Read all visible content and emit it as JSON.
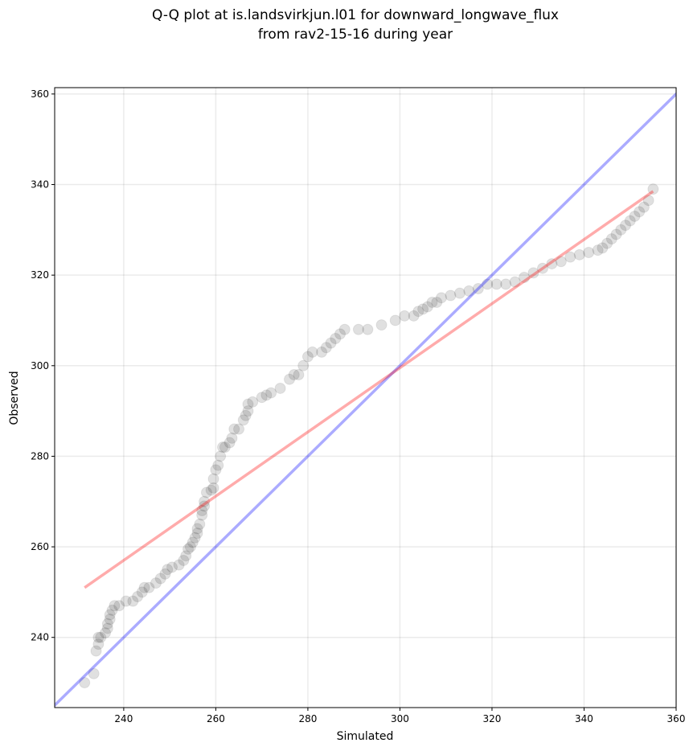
{
  "chart_data": {
    "type": "scatter",
    "title": [
      "Q-Q plot at is.landsvirkjun.l01 for downward_longwave_flux",
      "from rav2-15-16 during year"
    ],
    "xlabel": "Simulated",
    "ylabel": "Observed",
    "xlim": [
      225,
      360
    ],
    "ylim": [
      224.5,
      361.4
    ],
    "xticks": [
      240,
      260,
      280,
      300,
      320,
      340,
      360
    ],
    "yticks": [
      240,
      260,
      280,
      300,
      320,
      340,
      360
    ],
    "grid": true,
    "color": "#000000",
    "x": [
      231.5,
      233.5,
      234,
      234.5,
      234.5,
      235,
      236,
      236.5,
      236.5,
      237,
      237,
      237.5,
      238,
      239,
      240.5,
      242,
      243,
      244,
      244.5,
      245.5,
      247,
      248,
      249,
      249.5,
      250.5,
      252,
      253,
      253.5,
      254,
      254.5,
      255,
      255.5,
      256,
      256,
      256.5,
      257,
      257,
      257.5,
      257.5,
      258,
      259,
      259.5,
      259.5,
      260,
      260.5,
      261,
      261.5,
      262,
      263,
      263.5,
      264,
      265,
      266,
      266.5,
      267,
      267,
      268,
      270,
      271,
      272,
      274,
      276,
      277,
      278,
      279,
      280,
      281,
      283,
      284,
      285,
      286,
      287,
      288,
      291,
      293,
      296,
      299,
      301,
      303,
      304,
      305,
      306,
      307,
      308,
      309,
      311,
      313,
      315,
      317,
      319,
      321,
      323,
      325,
      327,
      329,
      331,
      333,
      335,
      337,
      339,
      341,
      343,
      344,
      345,
      346,
      347,
      348,
      349,
      350,
      351,
      352,
      353,
      354,
      355
    ],
    "y": [
      230,
      232,
      237,
      238.5,
      240,
      240,
      241,
      242,
      243,
      244,
      245,
      246,
      247,
      247,
      248,
      248,
      249,
      250,
      251,
      251,
      252,
      253,
      254,
      255,
      255.5,
      256,
      257,
      258,
      259.5,
      260,
      261,
      262,
      263,
      264,
      265,
      267,
      268,
      269,
      270,
      272,
      272.5,
      273,
      275,
      277,
      278,
      280,
      282,
      282,
      283,
      284,
      286,
      286,
      288,
      289,
      290,
      291.5,
      292,
      293,
      293.5,
      294,
      295,
      297,
      298,
      298,
      300,
      302,
      303,
      303,
      304,
      305,
      306,
      307,
      308,
      308,
      308,
      309,
      310,
      311,
      311,
      312,
      312.5,
      313,
      314,
      314,
      315,
      315.5,
      316,
      316.5,
      317,
      318,
      318,
      318,
      318.5,
      319.5,
      320.5,
      321.5,
      322.5,
      323,
      324,
      324.5,
      325,
      325.5,
      326,
      327,
      328,
      329,
      330,
      331,
      332,
      333,
      334,
      335,
      336.5,
      339
    ],
    "reference_lines": [
      {
        "x": [
          224.5,
          361.4
        ],
        "y": [
          224.5,
          361.4
        ],
        "color": "#0000ff"
      },
      {
        "x": [
          231.5,
          355
        ],
        "y": [
          251,
          338.5
        ],
        "color": "#ff0000"
      }
    ]
  }
}
